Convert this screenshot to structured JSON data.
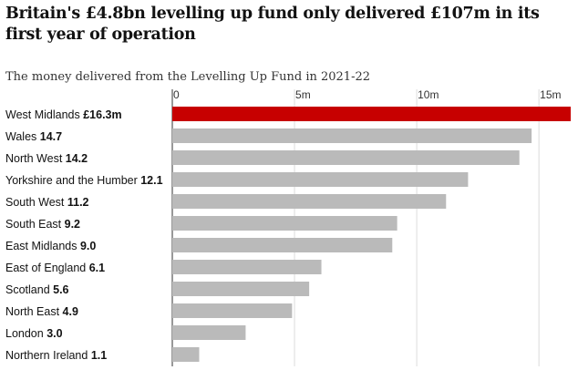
{
  "title": "Britain's £4.8bn levelling up fund only delivered £107m in its first year of operation",
  "subtitle": "The money delivered from the Levelling Up Fund in 2021-22",
  "chart_data": {
    "type": "bar",
    "orientation": "horizontal",
    "categories": [
      "West Midlands",
      "Wales",
      "North West",
      "Yorkshire and the Humber",
      "South West",
      "South East",
      "East Midlands",
      "East of England",
      "Scotland",
      "North East",
      "London",
      "Northern Ireland"
    ],
    "values": [
      16.3,
      14.7,
      14.2,
      12.1,
      11.2,
      9.2,
      9.0,
      6.1,
      5.6,
      4.9,
      3.0,
      1.1
    ],
    "value_labels": [
      "£16.3m",
      "14.7",
      "14.2",
      "12.1",
      "11.2",
      "9.2",
      "9.0",
      "6.1",
      "5.6",
      "4.9",
      "3.0",
      "1.1"
    ],
    "xlim": [
      0,
      16.3
    ],
    "xticks": [
      0,
      5,
      10,
      15
    ],
    "xtick_labels": [
      "0",
      "5m",
      "10m",
      "15m"
    ],
    "xaxis_position": "top",
    "grid": true,
    "colors": {
      "highlight": "#c70000",
      "bar": "#bababa",
      "grid": "#dcdcdc",
      "axis": "#333333"
    }
  }
}
